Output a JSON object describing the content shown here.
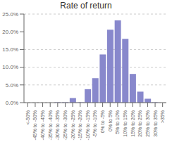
{
  "chart_data": {
    "type": "bar",
    "title": "Rate of return",
    "categories": [
      "<-50%",
      "-45% to\n-50%",
      "-40% to\n-45%",
      "-35% to\n-40%",
      "-30% to\n-35%",
      "-25% to\n-30%",
      "-20% to\n-25%",
      "-15% to\n-20%",
      "-10% to\n-15%",
      "-5% to\n-10%",
      "0% to\n-5%",
      "0% to\n5%",
      "5% to\n10%",
      "10% to\n15%",
      "15% to\n20%",
      "20% to\n25%",
      "25% to\n30%",
      "30% to\n35%",
      ">35%"
    ],
    "values": [
      0.0,
      0.0,
      0.0,
      0.0,
      0.1,
      0.1,
      1.3,
      0.1,
      3.8,
      6.9,
      13.6,
      20.6,
      23.2,
      18.0,
      8.1,
      3.1,
      1.1,
      0.1,
      0.0
    ],
    "color": "#8888cc",
    "ylim": [
      0,
      25
    ],
    "yticks": [
      {
        "value": 0.0,
        "label": "0.0%"
      },
      {
        "value": 5.0,
        "label": "5.0%"
      },
      {
        "value": 10.0,
        "label": "10.0%"
      },
      {
        "value": 15.0,
        "label": "15.0%"
      },
      {
        "value": 20.0,
        "label": "20.0%"
      },
      {
        "value": 25.0,
        "label": "25.0%"
      }
    ],
    "grid": true
  }
}
